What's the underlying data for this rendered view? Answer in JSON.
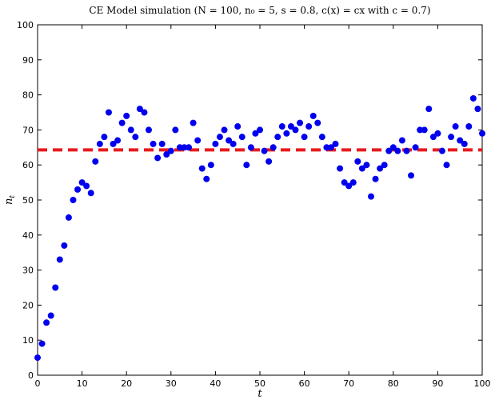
{
  "chart_data": {
    "type": "scatter",
    "title": "CE Model simulation (N = 100, n₀ = 5, s = 0.8, c(x) = cx  with c = 0.7)",
    "xlabel": "t",
    "ylabel": "n_t",
    "xlim": [
      0,
      100
    ],
    "ylim": [
      0,
      100
    ],
    "xticks": [
      0,
      10,
      20,
      30,
      40,
      50,
      60,
      70,
      80,
      90,
      100
    ],
    "yticks": [
      0,
      10,
      20,
      30,
      40,
      50,
      60,
      70,
      80,
      90,
      100
    ],
    "grid": false,
    "colors": {
      "points": "#0000ee",
      "reference_line": "#e8191c"
    },
    "reference_line": {
      "y": 64.3,
      "style": "dashed"
    },
    "series": [
      {
        "x": [
          0,
          1,
          2,
          3,
          4,
          5,
          6,
          7,
          8,
          9,
          10,
          11,
          12,
          13,
          14,
          15,
          16,
          17,
          18,
          19,
          20,
          21,
          22,
          23,
          24,
          25,
          26,
          27,
          28,
          29,
          30,
          31,
          32,
          33,
          34,
          35,
          36,
          37,
          38,
          39,
          40,
          41,
          42,
          43,
          44,
          45,
          46,
          47,
          48,
          49,
          50,
          51,
          52,
          53,
          54,
          55,
          56,
          57,
          58,
          59,
          60,
          61,
          62,
          63,
          64,
          65,
          66,
          67,
          68,
          69,
          70,
          71,
          72,
          73,
          74,
          75,
          76,
          77,
          78,
          79,
          80,
          81,
          82,
          83,
          84,
          85,
          86,
          87,
          88,
          89,
          90,
          91,
          92,
          93,
          94,
          95,
          96,
          97,
          98,
          99,
          100
        ],
        "y": [
          5,
          9,
          15,
          17,
          25,
          33,
          37,
          45,
          50,
          53,
          55,
          54,
          52,
          61,
          66,
          68,
          75,
          66,
          67,
          72,
          74,
          70,
          68,
          76,
          75,
          70,
          66,
          62,
          66,
          63,
          64,
          70,
          65,
          65,
          65,
          72,
          67,
          59,
          56,
          60,
          66,
          68,
          70,
          67,
          66,
          71,
          68,
          60,
          65,
          69,
          70,
          64,
          61,
          65,
          68,
          71,
          69,
          71,
          70,
          72,
          68,
          71,
          74,
          72,
          68,
          65,
          65,
          66,
          59,
          55,
          54,
          55,
          61,
          59,
          60,
          51,
          56,
          59,
          60,
          64,
          65,
          64,
          67,
          64,
          57,
          65,
          70,
          70,
          76,
          68,
          69,
          64,
          60,
          68,
          71,
          67,
          66,
          71,
          79,
          76,
          69
        ]
      }
    ]
  }
}
